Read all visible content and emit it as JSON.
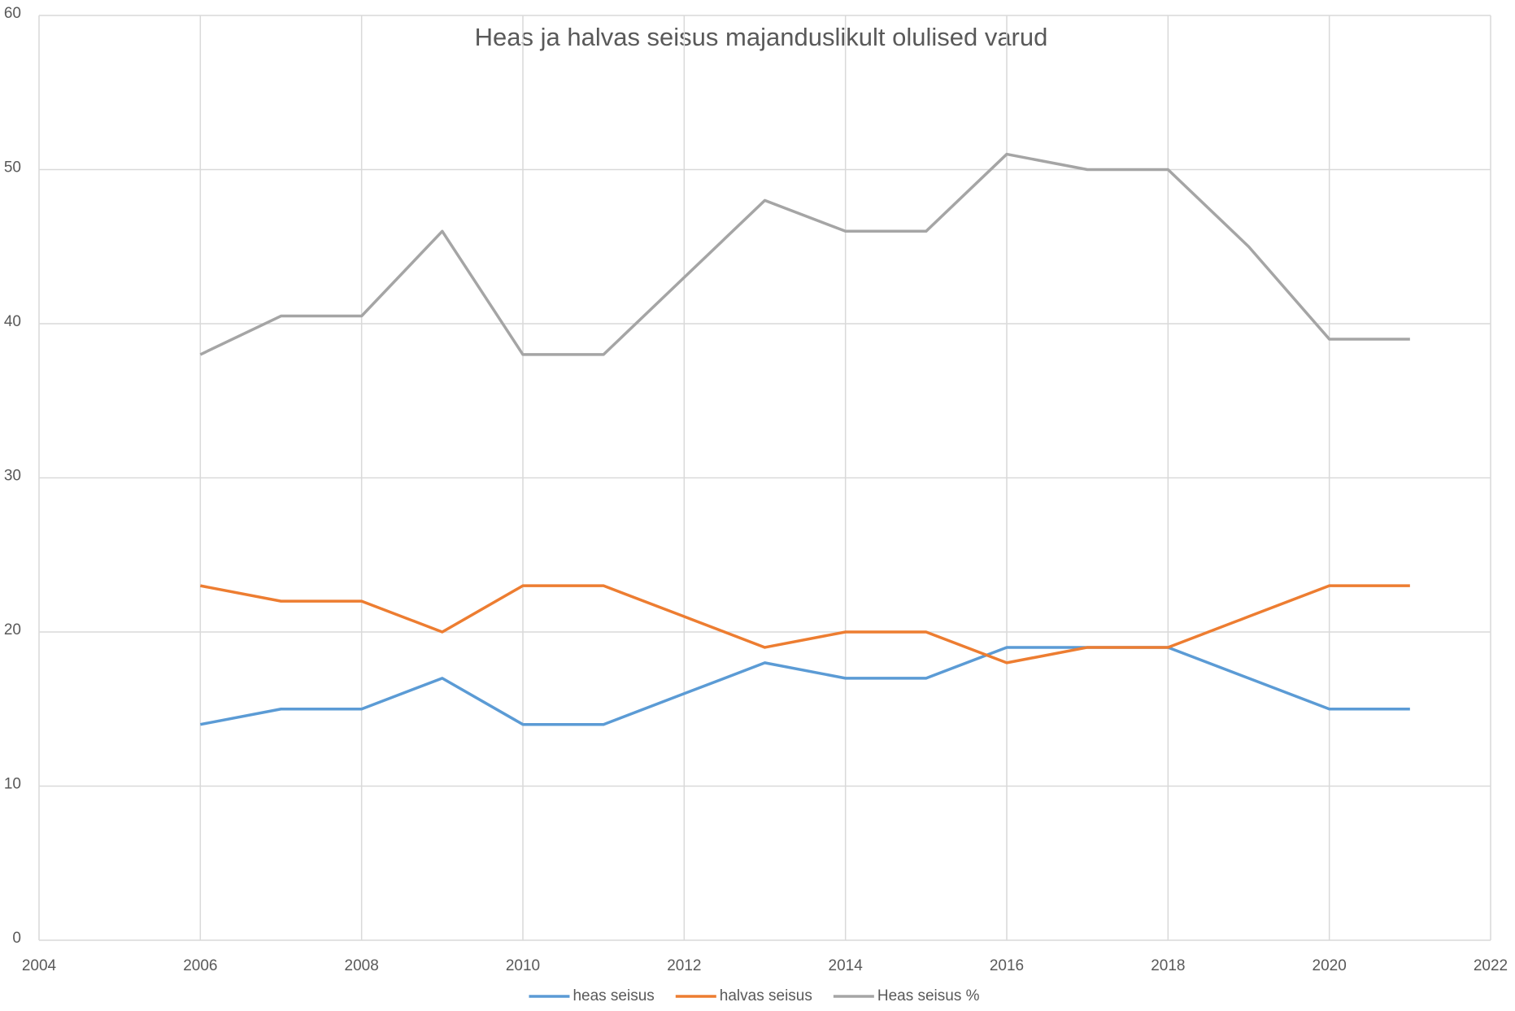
{
  "chart_data": {
    "type": "line",
    "title": "Heas ja halvas seisus majanduslikult olulised varud",
    "x": [
      2006,
      2007,
      2008,
      2009,
      2010,
      2011,
      2012,
      2013,
      2014,
      2015,
      2016,
      2017,
      2018,
      2019,
      2020,
      2021
    ],
    "series": [
      {
        "name": "heas seisus",
        "color": "#5b9bd5",
        "values": [
          14,
          15,
          15,
          17,
          14,
          14,
          16,
          18,
          17,
          17,
          19,
          19,
          19,
          17,
          15,
          15
        ]
      },
      {
        "name": "halvas seisus",
        "color": "#ed7d31",
        "values": [
          23,
          22,
          22,
          20,
          23,
          23,
          21,
          19,
          20,
          20,
          18,
          19,
          19,
          21,
          23,
          23
        ]
      },
      {
        "name": "Heas seisus %",
        "color": "#a5a5a5",
        "values": [
          38,
          40.5,
          40.5,
          46,
          38,
          38,
          43,
          48,
          46,
          46,
          51,
          50,
          50,
          45,
          39,
          39
        ]
      }
    ],
    "xlim": [
      2004,
      2022
    ],
    "xticks": [
      2004,
      2006,
      2008,
      2010,
      2012,
      2014,
      2016,
      2018,
      2020,
      2022
    ],
    "ylim": [
      0,
      60
    ],
    "yticks": [
      0,
      10,
      20,
      30,
      40,
      50,
      60
    ],
    "grid": true,
    "legend": "bottom"
  }
}
